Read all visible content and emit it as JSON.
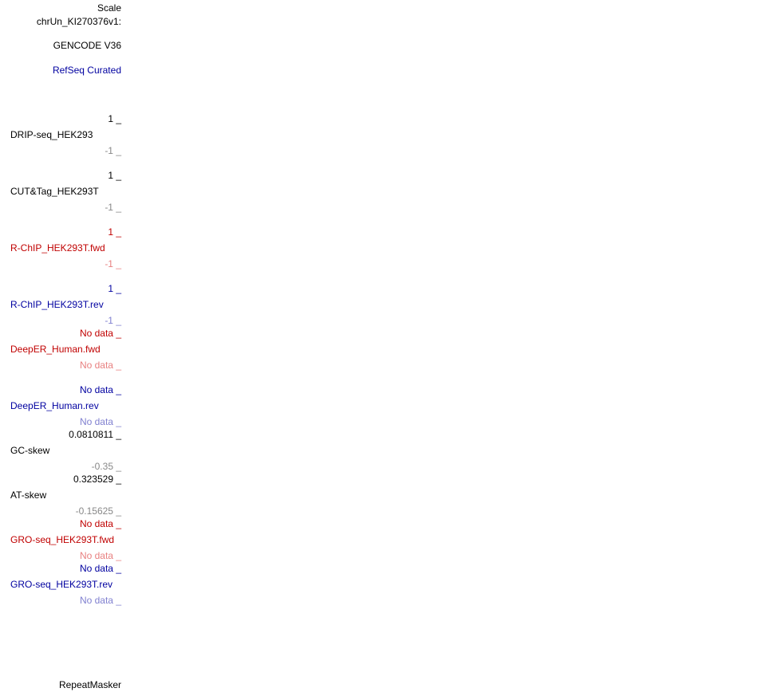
{
  "header": {
    "scale": "Scale",
    "chrom": "chrUn_KI270376v1:"
  },
  "tracks": [
    {
      "name": "GENCODE V36",
      "color": "black"
    },
    {
      "name": "RefSeq Curated",
      "color": "blue"
    },
    {
      "name": "DRIP-seq_HEK293",
      "max": "1 _",
      "min": "-1 _",
      "color": "black"
    },
    {
      "name": "CUT&Tag_HEK293T",
      "max": "1 _",
      "min": "-1 _",
      "color": "black"
    },
    {
      "name": "R-ChIP_HEK293T.fwd",
      "max": "1 _",
      "min": "-1 _",
      "color": "red"
    },
    {
      "name": "R-ChIP_HEK293T.rev",
      "max": "1 _",
      "min": "-1 _",
      "color": "blue"
    },
    {
      "name": "DeepER_Human.fwd",
      "max": "No data _",
      "min": "No data _",
      "color": "red"
    },
    {
      "name": "DeepER_Human.rev",
      "max": "No data _",
      "min": "No data _",
      "color": "blue"
    },
    {
      "name": "GC-skew",
      "max": "0.0810811 _",
      "min": "-0.35 _",
      "color": "black"
    },
    {
      "name": "AT-skew",
      "max": "0.323529 _",
      "min": "-0.15625 _",
      "color": "black"
    },
    {
      "name": "GRO-seq_HEK293T.fwd",
      "max": "No data _",
      "min": "No data _",
      "color": "red"
    },
    {
      "name": "GRO-seq_HEK293T.rev",
      "max": "No data _",
      "min": "No data _",
      "color": "blue"
    },
    {
      "name": "RepeatMasker",
      "color": "black"
    }
  ]
}
